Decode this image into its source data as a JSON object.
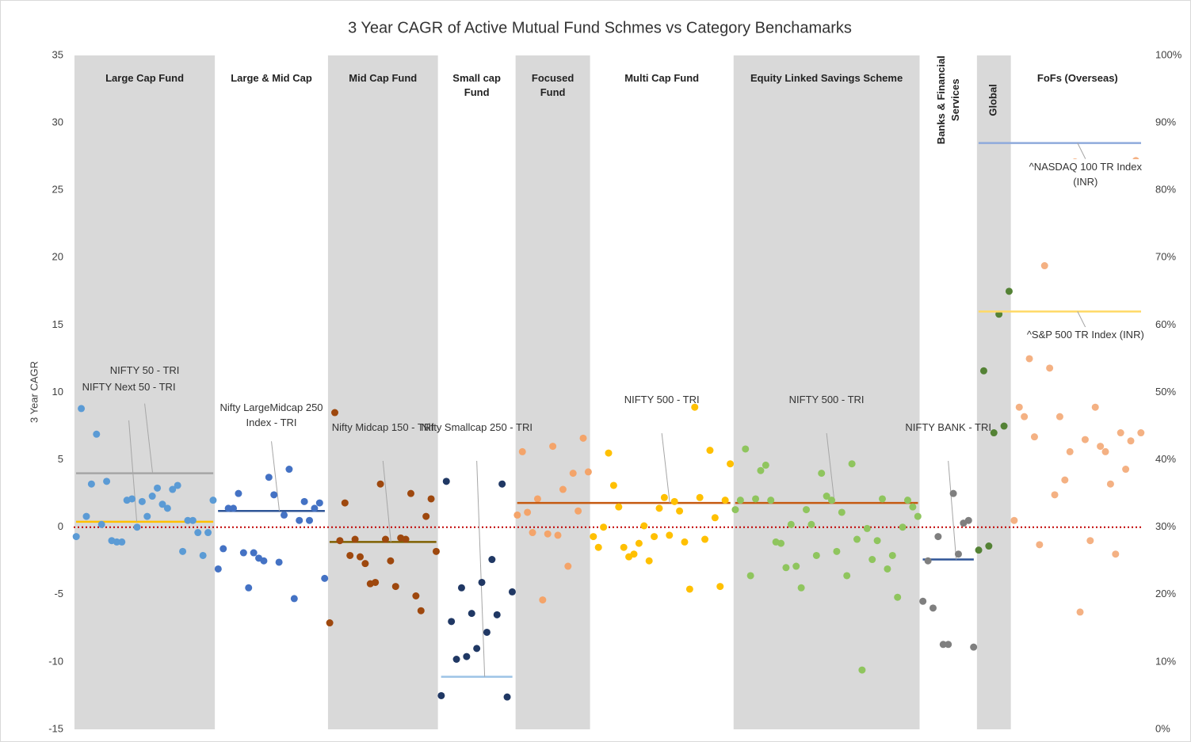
{
  "chart_data": {
    "type": "scatter",
    "title": "3 Year CAGR of Active Mutual Fund Schmes vs Category Benchamarks",
    "ylabel": "3 Year CAGR",
    "ylim": [
      -15,
      35
    ],
    "yticks": [
      -15,
      -10,
      -5,
      0,
      5,
      10,
      15,
      20,
      25,
      30,
      35
    ],
    "y2lim": [
      0,
      100
    ],
    "y2ticks": [
      {
        "value": 0,
        "label": "0%"
      },
      {
        "value": 10,
        "label": "10%"
      },
      {
        "value": 20,
        "label": "20%"
      },
      {
        "value": 30,
        "label": "30%"
      },
      {
        "value": 40,
        "label": "40%"
      },
      {
        "value": 50,
        "label": "50%"
      },
      {
        "value": 60,
        "label": "60%"
      },
      {
        "value": 70,
        "label": "70%"
      },
      {
        "value": 80,
        "label": "80%"
      },
      {
        "value": 90,
        "label": "90%"
      },
      {
        "value": 100,
        "label": "100%"
      }
    ],
    "groups": [
      {
        "name": "Large Cap Fund",
        "color": "#5b9bd5",
        "values": [
          -0.7,
          8.8,
          0.8,
          3.2,
          6.9,
          0.2,
          3.4,
          -1.0,
          -1.1,
          -1.1,
          2.0,
          2.1,
          0.0,
          1.9,
          0.8,
          2.3,
          2.9,
          1.7,
          1.4,
          2.8,
          3.1,
          -1.8,
          0.5,
          0.5,
          -0.4,
          -2.1,
          -0.4,
          2.0
        ],
        "benchmarks": [
          {
            "name": "NIFTY 50 - TRI",
            "value": 4.0,
            "color": "#a6a6a6"
          },
          {
            "name": "NIFTY Next 50 - TRI",
            "value": 0.4,
            "color": "#ffc000"
          }
        ]
      },
      {
        "name": "Large & Mid Cap",
        "color": "#4472c4",
        "values": [
          -3.1,
          -1.6,
          1.4,
          1.4,
          2.5,
          -1.9,
          -4.5,
          -1.9,
          -2.3,
          -2.5,
          3.7,
          2.4,
          -2.6,
          0.9,
          4.3,
          -5.3,
          0.5,
          1.9,
          0.5,
          1.4,
          1.8,
          -3.8
        ],
        "benchmarks": [
          {
            "name": "Nifty LargeMidcap 250 Index - TRI",
            "value": 1.2,
            "color": "#2f5597"
          }
        ]
      },
      {
        "name": "Mid Cap Fund",
        "color": "#9e480e",
        "values": [
          -7.1,
          8.5,
          -1.0,
          1.8,
          -2.1,
          -0.9,
          -2.2,
          -2.7,
          -4.2,
          -4.1,
          3.2,
          -0.9,
          -2.5,
          -4.4,
          -0.8,
          -0.9,
          2.5,
          -5.1,
          -6.2,
          0.8,
          2.1,
          -1.8
        ],
        "benchmarks": [
          {
            "name": "Nifty Midcap 150 - TRI",
            "value": -1.1,
            "color": "#7f6000"
          }
        ]
      },
      {
        "name": "Small cap Fund",
        "color": "#203864",
        "values": [
          -12.5,
          3.4,
          -7.0,
          -9.8,
          -4.5,
          -9.6,
          -6.4,
          -9.0,
          -4.1,
          -7.8,
          -2.4,
          -6.5,
          3.2,
          -12.6,
          -4.8
        ],
        "benchmarks": [
          {
            "name": "Nifty Smallcap 250 - TRI",
            "value": -11.1,
            "color": "#9dc3e6"
          }
        ]
      },
      {
        "name": "Focused Fund",
        "color": "#f4a46a",
        "values": [
          0.9,
          5.6,
          1.1,
          -0.4,
          2.1,
          -5.4,
          -0.5,
          6.0,
          -0.6,
          2.8,
          -2.9,
          4.0,
          1.2,
          6.6,
          4.1
        ],
        "benchmarks": []
      },
      {
        "name": "Multi Cap Fund",
        "color": "#ffc000",
        "values": [
          -0.7,
          -1.5,
          0.0,
          5.5,
          3.1,
          1.5,
          -1.5,
          -2.2,
          -2.0,
          -1.2,
          0.1,
          -2.5,
          -0.7,
          1.4,
          2.2,
          -0.6,
          1.9,
          1.2,
          -1.1,
          -4.6,
          8.9,
          2.2,
          -0.9,
          5.7,
          0.7,
          -4.4,
          2.0,
          4.7
        ],
        "benchmarks": [
          {
            "name": "NIFTY 500 - TRI",
            "value": 1.8,
            "color": "#c55a11"
          }
        ]
      },
      {
        "name": "Equity Linked Savings Scheme",
        "color": "#8fc55e",
        "values": [
          1.3,
          2.0,
          5.8,
          -3.6,
          2.1,
          4.2,
          4.6,
          2.0,
          -1.1,
          -1.2,
          -3.0,
          0.2,
          -2.9,
          -4.5,
          1.3,
          0.2,
          -2.1,
          4.0,
          2.3,
          2.0,
          -1.8,
          1.1,
          -3.6,
          4.7,
          -0.9,
          -10.6,
          -0.1,
          -2.4,
          -1.0,
          2.1,
          -3.1,
          -2.1,
          -5.2,
          0.0,
          2.0,
          1.5,
          0.8
        ],
        "benchmarks": [
          {
            "name": "NIFTY 500 - TRI",
            "value": 1.8,
            "color": "#c55a11"
          }
        ]
      },
      {
        "name": "Banks & Financial Services",
        "color": "#7f7f7f",
        "values": [
          -5.5,
          -2.5,
          -6.0,
          -0.7,
          -8.7,
          -8.7,
          2.5,
          -2.0,
          0.3,
          0.5,
          -8.9
        ],
        "benchmarks": [
          {
            "name": "NIFTY BANK - TRI",
            "value": -2.4,
            "color": "#2f5597"
          }
        ]
      },
      {
        "name": "Global",
        "color": "#548235",
        "values": [
          -1.7,
          11.6,
          -1.4,
          7.0,
          15.8,
          7.5,
          17.5
        ],
        "benchmarks": []
      },
      {
        "name": "FoFs (Overseas)",
        "color": "#f4b183",
        "values": [
          0.5,
          8.9,
          8.2,
          12.5,
          6.7,
          -1.3,
          19.4,
          11.8,
          2.4,
          8.2,
          3.5,
          5.6,
          27.1,
          -6.3,
          6.5,
          -1.0,
          8.9,
          6.0,
          5.6,
          3.2,
          -2.0,
          7.0,
          4.3,
          6.4,
          27.2,
          7.0
        ],
        "benchmarks": [
          {
            "name": "^NASDAQ 100 TR Index (INR)",
            "value": 87,
            "color": "#8faadc",
            "axis": "y2"
          },
          {
            "name": "^S&P 500 TR Index (INR)",
            "value": 62,
            "color": "#ffd966",
            "axis": "y2"
          }
        ]
      }
    ]
  }
}
